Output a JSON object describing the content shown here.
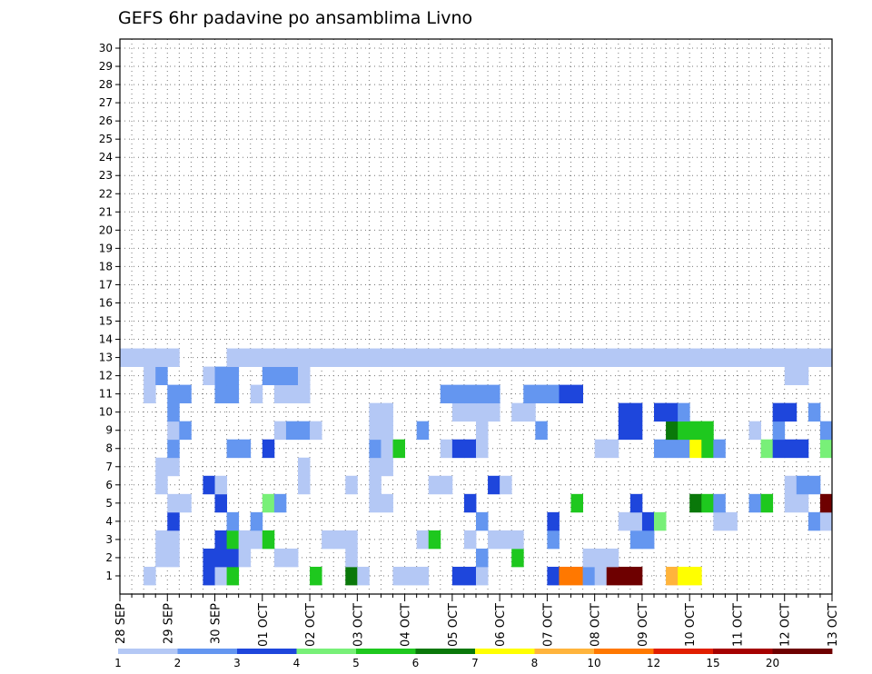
{
  "chart_data": {
    "type": "heatmap",
    "title": "GEFS 6hr padavine po ansamblima Livno",
    "y_ticks": [
      "1",
      "2",
      "3",
      "4",
      "5",
      "6",
      "7",
      "8",
      "9",
      "10",
      "11",
      "12",
      "13",
      "14",
      "15",
      "16",
      "17",
      "18",
      "19",
      "20",
      "21",
      "22",
      "23",
      "24",
      "25",
      "26",
      "27",
      "28",
      "29",
      "30"
    ],
    "x_ticks": [
      "28 SEP",
      "29 SEP",
      "30 SEP",
      "01 OCT",
      "02 OCT",
      "03 OCT",
      "04 OCT",
      "05 OCT",
      "06 OCT",
      "07 OCT",
      "08 OCT",
      "09 OCT",
      "10 OCT",
      "11 OCT",
      "12 OCT",
      "13 OCT"
    ],
    "x_steps": 60,
    "steps_per_day": 4,
    "grid": true,
    "legend_position": "bottom",
    "legend_labels": [
      "1",
      "2",
      "3",
      "4",
      "5",
      "6",
      "7",
      "8",
      "10",
      "12",
      "15",
      "20"
    ],
    "color_levels": [
      "#b4c8f5",
      "#6496f0",
      "#1e46dc",
      "#78f078",
      "#1ec81e",
      "#0a780a",
      "#ffff00",
      "#ffb43c",
      "#ff7800",
      "#e11e00",
      "#a50000",
      "#6e0000"
    ],
    "cells": [
      [
        0,
        2,
        1
      ],
      [
        0,
        7,
        3
      ],
      [
        0,
        8,
        1
      ],
      [
        0,
        9,
        5
      ],
      [
        0,
        16,
        5
      ],
      [
        0,
        19,
        6
      ],
      [
        0,
        20,
        1
      ],
      [
        0,
        23,
        1
      ],
      [
        0,
        24,
        1
      ],
      [
        0,
        25,
        1
      ],
      [
        0,
        28,
        3
      ],
      [
        0,
        29,
        3
      ],
      [
        0,
        30,
        1
      ],
      [
        0,
        36,
        3
      ],
      [
        0,
        37,
        9
      ],
      [
        0,
        38,
        9
      ],
      [
        0,
        39,
        2
      ],
      [
        0,
        40,
        1
      ],
      [
        0,
        41,
        12
      ],
      [
        0,
        42,
        12
      ],
      [
        0,
        43,
        12
      ],
      [
        0,
        46,
        8
      ],
      [
        0,
        47,
        7
      ],
      [
        0,
        48,
        7
      ],
      [
        1,
        3,
        1
      ],
      [
        1,
        4,
        1
      ],
      [
        1,
        7,
        3
      ],
      [
        1,
        8,
        3
      ],
      [
        1,
        9,
        3
      ],
      [
        1,
        10,
        1
      ],
      [
        1,
        13,
        1
      ],
      [
        1,
        14,
        1
      ],
      [
        1,
        19,
        1
      ],
      [
        1,
        30,
        2
      ],
      [
        1,
        33,
        5
      ],
      [
        1,
        39,
        1
      ],
      [
        1,
        40,
        1
      ],
      [
        1,
        41,
        1
      ],
      [
        2,
        3,
        1
      ],
      [
        2,
        4,
        1
      ],
      [
        2,
        8,
        3
      ],
      [
        2,
        9,
        5
      ],
      [
        2,
        10,
        1
      ],
      [
        2,
        11,
        1
      ],
      [
        2,
        12,
        5
      ],
      [
        2,
        17,
        1
      ],
      [
        2,
        18,
        1
      ],
      [
        2,
        19,
        1
      ],
      [
        2,
        25,
        1
      ],
      [
        2,
        26,
        5
      ],
      [
        2,
        29,
        1
      ],
      [
        2,
        31,
        1
      ],
      [
        2,
        32,
        1
      ],
      [
        2,
        33,
        1
      ],
      [
        2,
        36,
        2
      ],
      [
        2,
        43,
        2
      ],
      [
        2,
        44,
        2
      ],
      [
        3,
        4,
        3
      ],
      [
        3,
        9,
        2
      ],
      [
        3,
        11,
        2
      ],
      [
        3,
        30,
        2
      ],
      [
        3,
        36,
        3
      ],
      [
        3,
        42,
        1
      ],
      [
        3,
        43,
        1
      ],
      [
        3,
        44,
        3
      ],
      [
        3,
        45,
        4
      ],
      [
        3,
        50,
        1
      ],
      [
        3,
        51,
        1
      ],
      [
        3,
        58,
        2
      ],
      [
        3,
        59,
        1
      ],
      [
        4,
        4,
        1
      ],
      [
        4,
        5,
        1
      ],
      [
        4,
        8,
        3
      ],
      [
        4,
        12,
        4
      ],
      [
        4,
        13,
        2
      ],
      [
        4,
        21,
        1
      ],
      [
        4,
        22,
        1
      ],
      [
        4,
        29,
        3
      ],
      [
        4,
        38,
        5
      ],
      [
        4,
        43,
        3
      ],
      [
        4,
        48,
        6
      ],
      [
        4,
        49,
        5
      ],
      [
        4,
        50,
        2
      ],
      [
        4,
        53,
        2
      ],
      [
        4,
        54,
        5
      ],
      [
        4,
        56,
        1
      ],
      [
        4,
        57,
        1
      ],
      [
        4,
        59,
        12
      ],
      [
        5,
        3,
        1
      ],
      [
        5,
        7,
        3
      ],
      [
        5,
        8,
        1
      ],
      [
        5,
        15,
        1
      ],
      [
        5,
        19,
        1
      ],
      [
        5,
        21,
        1
      ],
      [
        5,
        26,
        1
      ],
      [
        5,
        27,
        1
      ],
      [
        5,
        31,
        3
      ],
      [
        5,
        32,
        1
      ],
      [
        5,
        56,
        1
      ],
      [
        5,
        57,
        2
      ],
      [
        5,
        58,
        2
      ],
      [
        6,
        3,
        1
      ],
      [
        6,
        4,
        1
      ],
      [
        6,
        15,
        1
      ],
      [
        6,
        21,
        1
      ],
      [
        6,
        22,
        1
      ],
      [
        7,
        4,
        2
      ],
      [
        7,
        9,
        2
      ],
      [
        7,
        10,
        2
      ],
      [
        7,
        12,
        3
      ],
      [
        7,
        21,
        2
      ],
      [
        7,
        22,
        1
      ],
      [
        7,
        23,
        5
      ],
      [
        7,
        27,
        1
      ],
      [
        7,
        28,
        3
      ],
      [
        7,
        29,
        3
      ],
      [
        7,
        30,
        1
      ],
      [
        7,
        40,
        1
      ],
      [
        7,
        41,
        1
      ],
      [
        7,
        45,
        2
      ],
      [
        7,
        46,
        2
      ],
      [
        7,
        47,
        2
      ],
      [
        7,
        48,
        7
      ],
      [
        7,
        49,
        5
      ],
      [
        7,
        50,
        2
      ],
      [
        7,
        54,
        4
      ],
      [
        7,
        55,
        3
      ],
      [
        7,
        56,
        3
      ],
      [
        7,
        57,
        3
      ],
      [
        7,
        59,
        4
      ],
      [
        8,
        4,
        1
      ],
      [
        8,
        5,
        2
      ],
      [
        8,
        13,
        1
      ],
      [
        8,
        14,
        2
      ],
      [
        8,
        15,
        2
      ],
      [
        8,
        16,
        1
      ],
      [
        8,
        21,
        1
      ],
      [
        8,
        22,
        1
      ],
      [
        8,
        25,
        2
      ],
      [
        8,
        30,
        1
      ],
      [
        8,
        35,
        2
      ],
      [
        8,
        42,
        3
      ],
      [
        8,
        43,
        3
      ],
      [
        8,
        46,
        6
      ],
      [
        8,
        47,
        5
      ],
      [
        8,
        48,
        5
      ],
      [
        8,
        49,
        5
      ],
      [
        8,
        53,
        1
      ],
      [
        8,
        55,
        2
      ],
      [
        8,
        59,
        2
      ],
      [
        9,
        4,
        2
      ],
      [
        9,
        21,
        1
      ],
      [
        9,
        22,
        1
      ],
      [
        9,
        28,
        1
      ],
      [
        9,
        29,
        1
      ],
      [
        9,
        30,
        1
      ],
      [
        9,
        31,
        1
      ],
      [
        9,
        33,
        1
      ],
      [
        9,
        34,
        1
      ],
      [
        9,
        42,
        3
      ],
      [
        9,
        43,
        3
      ],
      [
        9,
        45,
        3
      ],
      [
        9,
        46,
        3
      ],
      [
        9,
        47,
        2
      ],
      [
        9,
        55,
        3
      ],
      [
        9,
        56,
        3
      ],
      [
        9,
        58,
        2
      ],
      [
        10,
        2,
        1
      ],
      [
        10,
        4,
        2
      ],
      [
        10,
        5,
        2
      ],
      [
        10,
        8,
        2
      ],
      [
        10,
        9,
        2
      ],
      [
        10,
        11,
        1
      ],
      [
        10,
        13,
        1
      ],
      [
        10,
        14,
        1
      ],
      [
        10,
        15,
        1
      ],
      [
        10,
        27,
        2
      ],
      [
        10,
        28,
        2
      ],
      [
        10,
        29,
        2
      ],
      [
        10,
        30,
        2
      ],
      [
        10,
        31,
        2
      ],
      [
        10,
        34,
        2
      ],
      [
        10,
        35,
        2
      ],
      [
        10,
        36,
        2
      ],
      [
        10,
        37,
        3
      ],
      [
        10,
        38,
        3
      ],
      [
        11,
        2,
        1
      ],
      [
        11,
        3,
        2
      ],
      [
        11,
        7,
        1
      ],
      [
        11,
        8,
        2
      ],
      [
        11,
        9,
        2
      ],
      [
        11,
        12,
        2
      ],
      [
        11,
        13,
        2
      ],
      [
        11,
        14,
        2
      ],
      [
        11,
        15,
        1
      ],
      [
        11,
        56,
        1
      ],
      [
        11,
        57,
        1
      ],
      [
        12,
        0,
        1
      ],
      [
        12,
        1,
        1
      ],
      [
        12,
        2,
        1
      ],
      [
        12,
        3,
        1
      ],
      [
        12,
        4,
        1
      ],
      [
        12,
        9,
        1
      ],
      [
        12,
        10,
        1
      ],
      [
        12,
        11,
        1
      ],
      [
        12,
        12,
        1
      ],
      [
        12,
        13,
        1
      ],
      [
        12,
        14,
        1
      ],
      [
        12,
        15,
        1
      ],
      [
        12,
        16,
        1
      ],
      [
        12,
        17,
        1
      ],
      [
        12,
        18,
        1
      ],
      [
        12,
        19,
        1
      ],
      [
        12,
        20,
        1
      ],
      [
        12,
        21,
        1
      ],
      [
        12,
        22,
        1
      ],
      [
        12,
        23,
        1
      ],
      [
        12,
        24,
        1
      ],
      [
        12,
        25,
        1
      ],
      [
        12,
        26,
        1
      ],
      [
        12,
        27,
        1
      ],
      [
        12,
        28,
        1
      ],
      [
        12,
        29,
        1
      ],
      [
        12,
        30,
        1
      ],
      [
        12,
        31,
        1
      ],
      [
        12,
        32,
        1
      ],
      [
        12,
        33,
        1
      ],
      [
        12,
        34,
        1
      ],
      [
        12,
        35,
        1
      ],
      [
        12,
        36,
        1
      ],
      [
        12,
        37,
        1
      ],
      [
        12,
        38,
        1
      ],
      [
        12,
        39,
        1
      ],
      [
        12,
        40,
        1
      ],
      [
        12,
        41,
        1
      ],
      [
        12,
        42,
        1
      ],
      [
        12,
        43,
        1
      ],
      [
        12,
        44,
        1
      ],
      [
        12,
        45,
        1
      ],
      [
        12,
        46,
        1
      ],
      [
        12,
        47,
        1
      ],
      [
        12,
        48,
        1
      ],
      [
        12,
        49,
        1
      ],
      [
        12,
        50,
        1
      ],
      [
        12,
        51,
        1
      ],
      [
        12,
        52,
        1
      ],
      [
        12,
        53,
        1
      ],
      [
        12,
        54,
        1
      ],
      [
        12,
        55,
        1
      ],
      [
        12,
        56,
        1
      ],
      [
        12,
        57,
        1
      ],
      [
        12,
        58,
        1
      ],
      [
        12,
        59,
        1
      ]
    ]
  }
}
